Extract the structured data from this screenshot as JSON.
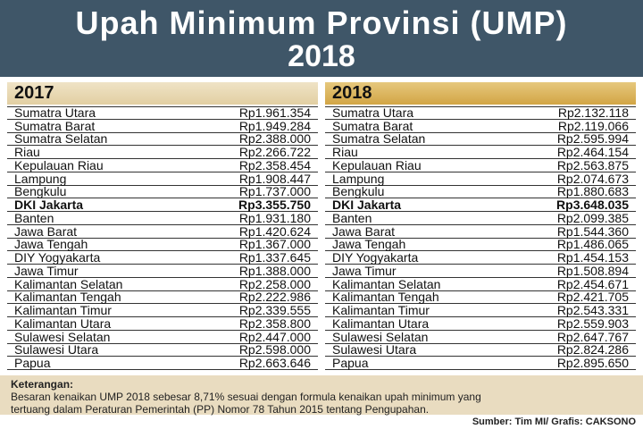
{
  "header": {
    "title_line1": "Upah Minimum Provinsi (UMP)",
    "title_line2": "2018"
  },
  "table_2017": {
    "year": "2017",
    "rows": [
      {
        "province": "Sumatra Utara",
        "value": "Rp1.961.354"
      },
      {
        "province": "Sumatra Barat",
        "value": "Rp1.949.284"
      },
      {
        "province": "Sumatra Selatan",
        "value": "Rp2.388.000"
      },
      {
        "province": "Riau",
        "value": "Rp2.266.722"
      },
      {
        "province": "Kepulauan Riau",
        "value": "Rp2.358.454"
      },
      {
        "province": "Lampung",
        "value": "Rp1.908.447"
      },
      {
        "province": "Bengkulu",
        "value": "Rp1.737.000"
      },
      {
        "province": "DKI Jakarta",
        "value": "Rp3.355.750"
      },
      {
        "province": "Banten",
        "value": "Rp1.931.180"
      },
      {
        "province": "Jawa Barat",
        "value": "Rp1.420.624"
      },
      {
        "province": "Jawa Tengah",
        "value": "Rp1.367.000"
      },
      {
        "province": "DIY Yogyakarta",
        "value": "Rp1.337.645"
      },
      {
        "province": "Jawa Timur",
        "value": "Rp1.388.000"
      },
      {
        "province": "Kalimantan Selatan",
        "value": "Rp2.258.000"
      },
      {
        "province": "Kalimantan Tengah",
        "value": "Rp2.222.986"
      },
      {
        "province": "Kalimantan Timur",
        "value": "Rp2.339.555"
      },
      {
        "province": "Kalimantan Utara",
        "value": "Rp2.358.800"
      },
      {
        "province": "Sulawesi Selatan",
        "value": "Rp2.447.000"
      },
      {
        "province": "Sulawesi Utara",
        "value": "Rp2.598.000"
      },
      {
        "province": "Papua",
        "value": "Rp2.663.646"
      }
    ]
  },
  "table_2018": {
    "year": "2018",
    "rows": [
      {
        "province": "Sumatra Utara",
        "value": "Rp2.132.118"
      },
      {
        "province": "Sumatra Barat",
        "value": "Rp2.119.066"
      },
      {
        "province": "Sumatra Selatan",
        "value": "Rp2.595.994"
      },
      {
        "province": "Riau",
        "value": "Rp2.464.154"
      },
      {
        "province": "Kepulauan Riau",
        "value": "Rp2.563.875"
      },
      {
        "province": "Lampung",
        "value": "Rp2.074.673"
      },
      {
        "province": "Bengkulu",
        "value": "Rp1.880.683"
      },
      {
        "province": "DKI Jakarta",
        "value": "Rp3.648.035"
      },
      {
        "province": "Banten",
        "value": "Rp2.099.385"
      },
      {
        "province": "Jawa Barat",
        "value": "Rp1.544.360"
      },
      {
        "province": "Jawa Tengah",
        "value": "Rp1.486.065"
      },
      {
        "province": "DIY Yogyakarta",
        "value": "Rp1.454.153"
      },
      {
        "province": "Jawa Timur",
        "value": "Rp1.508.894"
      },
      {
        "province": "Kalimantan Selatan",
        "value": "Rp2.454.671"
      },
      {
        "province": "Kalimantan Tengah",
        "value": "Rp2.421.705"
      },
      {
        "province": "Kalimantan Timur",
        "value": "Rp2.543.331"
      },
      {
        "province": "Kalimantan Utara",
        "value": "Rp2.559.903"
      },
      {
        "province": "Sulawesi Selatan",
        "value": "Rp2.647.767"
      },
      {
        "province": "Sulawesi Utara",
        "value": "Rp2.824.286"
      },
      {
        "province": "Papua",
        "value": "Rp2.895.650"
      }
    ]
  },
  "highlight_province": "DKI Jakarta",
  "note": {
    "title": "Keterangan:",
    "line1": "Besaran kenaikan UMP 2018 sebesar 8,71% sesuai dengan formula kenaikan upah minimum yang",
    "line2": "tertuang dalam Peraturan Pemerintah (PP) Nomor 78 Tahun 2015 tentang Pengupahan."
  },
  "source": "Sumber: Tim MI/ Grafis: CAKSONO",
  "colors": {
    "title_bg": "#3f5668",
    "header_2017": "#e8d9b4",
    "header_2018": "#d9b25a",
    "note_bg": "#e9dcc0"
  }
}
